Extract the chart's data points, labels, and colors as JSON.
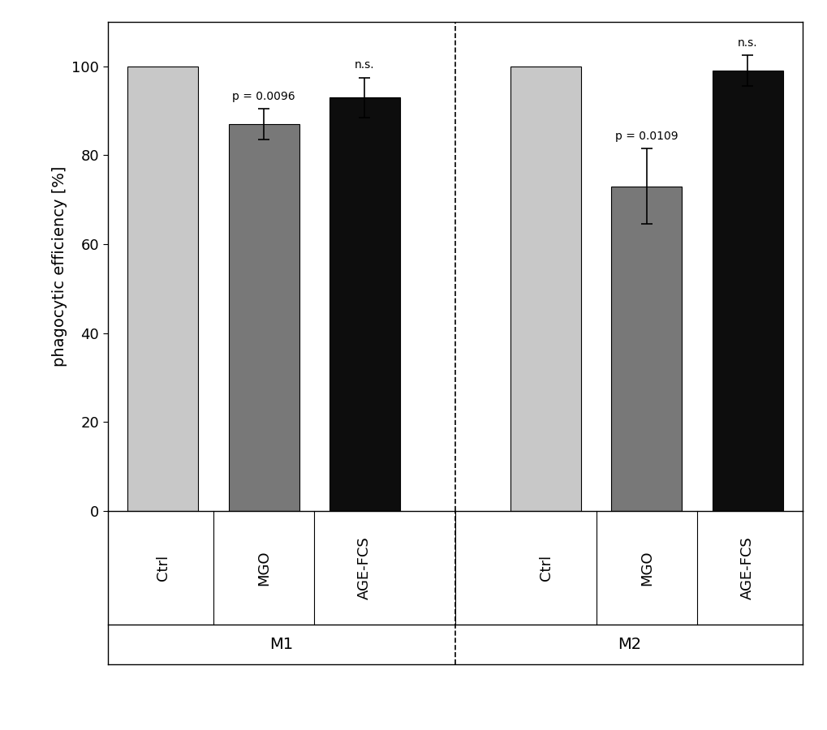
{
  "groups": [
    "M1",
    "M2"
  ],
  "categories": [
    "Ctrl",
    "MGO",
    "AGE-FCS"
  ],
  "values": {
    "M1": [
      100.0,
      87.0,
      93.0
    ],
    "M2": [
      100.0,
      73.0,
      99.0
    ]
  },
  "errors": {
    "M1": [
      0.0,
      3.5,
      4.5
    ],
    "M2": [
      0.0,
      8.5,
      3.5
    ]
  },
  "bar_colors": [
    "#c8c8c8",
    "#787878",
    "#0d0d0d"
  ],
  "annotations": {
    "M1": [
      "",
      "p = 0.0096",
      "n.s."
    ],
    "M2": [
      "",
      "p = 0.0109",
      "n.s."
    ]
  },
  "ylabel": "phagocytic efficiency [%]",
  "ylim": [
    0,
    110
  ],
  "yticks": [
    0,
    20,
    40,
    60,
    80,
    100
  ],
  "bar_width": 0.7,
  "annotation_fontsize": 10,
  "axis_fontsize": 14,
  "tick_fontsize": 13,
  "group_label_fontsize": 14,
  "cat_label_fontsize": 13
}
